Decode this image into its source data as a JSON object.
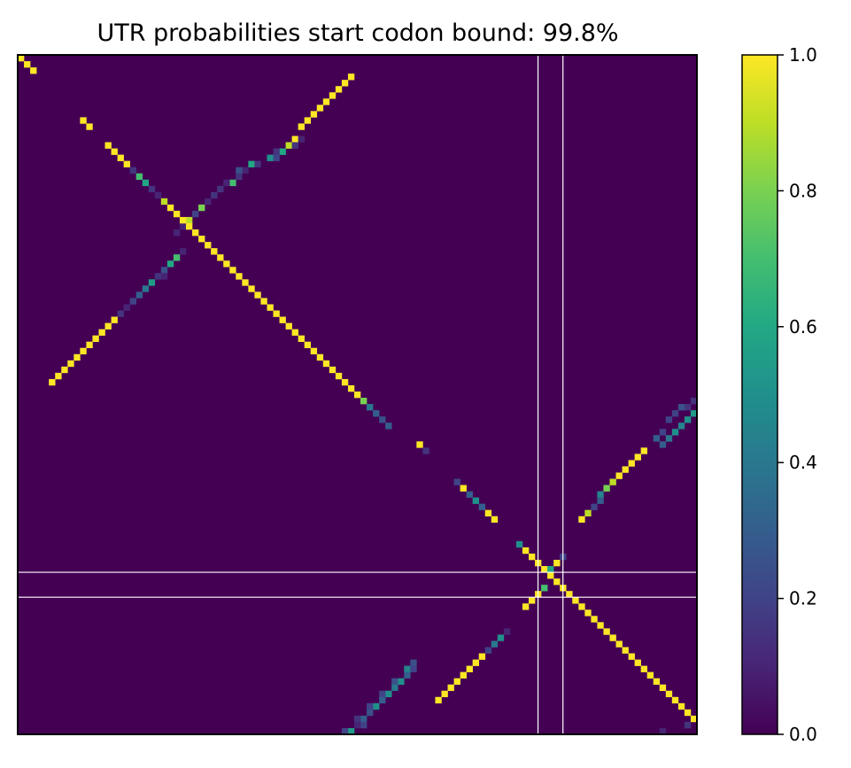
{
  "chart_data": {
    "type": "heatmap",
    "title": "UTR probabilities start codon bound: 99.8%",
    "colormap": "viridis",
    "matrix_size": 109,
    "clim": [
      0,
      1
    ],
    "colorbar": {
      "ticks": [
        0.0,
        0.2,
        0.4,
        0.6,
        0.8,
        1.0
      ],
      "tick_labels": [
        "0.0",
        "0.2",
        "0.4",
        "0.6",
        "0.8",
        "1.0"
      ]
    },
    "marker_lines": {
      "color": "#ffffff",
      "vertical_at": [
        83.5,
        87.5
      ],
      "horizontal_at": [
        83,
        87
      ]
    },
    "cells": [
      [
        0,
        0,
        1
      ],
      [
        1,
        1,
        1
      ],
      [
        2,
        2,
        1
      ],
      [
        3,
        53,
        1
      ],
      [
        4,
        52,
        1
      ],
      [
        5,
        51,
        1
      ],
      [
        6,
        50,
        1
      ],
      [
        7,
        49,
        1
      ],
      [
        8,
        48,
        1
      ],
      [
        9,
        47,
        1
      ],
      [
        10,
        46,
        1
      ],
      [
        11,
        45,
        1
      ],
      [
        13,
        44,
        1
      ],
      [
        13,
        45,
        0.1
      ],
      [
        14,
        43,
        0.9
      ],
      [
        14,
        44,
        0.15
      ],
      [
        15,
        42,
        0.6
      ],
      [
        15,
        41,
        0.15
      ],
      [
        16,
        40,
        0.5
      ],
      [
        16,
        41,
        0.2
      ],
      [
        17,
        37,
        0.6
      ],
      [
        17,
        38,
        0.15
      ],
      [
        18,
        36,
        0.1
      ],
      [
        18,
        35,
        0.25
      ],
      [
        19,
        35,
        0.15
      ],
      [
        20,
        34,
        0.7
      ],
      [
        20,
        33,
        0.1
      ],
      [
        21,
        32,
        0.15
      ],
      [
        22,
        31,
        0.15
      ],
      [
        23,
        30,
        0.1
      ],
      [
        24,
        29,
        0.8
      ],
      [
        25,
        28,
        0.2
      ],
      [
        26,
        27,
        0.9
      ],
      [
        27,
        26,
        0.1
      ],
      [
        28,
        25,
        0.1
      ],
      [
        31,
        26,
        0.1
      ],
      [
        32,
        25,
        0.7
      ],
      [
        33,
        24,
        0.6
      ],
      [
        34,
        23,
        0.25
      ],
      [
        35,
        22,
        0.15
      ],
      [
        35,
        23,
        0.1
      ],
      [
        36,
        21,
        0.55
      ],
      [
        37,
        20,
        0.4
      ],
      [
        38,
        19,
        0.3
      ],
      [
        39,
        18,
        0.2
      ],
      [
        40,
        17,
        0.1
      ],
      [
        41,
        16,
        0.15
      ],
      [
        42,
        15,
        1
      ],
      [
        43,
        14,
        1
      ],
      [
        44,
        13,
        1
      ],
      [
        45,
        12,
        1
      ],
      [
        46,
        11,
        1
      ],
      [
        47,
        10,
        1
      ],
      [
        48,
        9,
        1
      ],
      [
        49,
        8,
        1
      ],
      [
        50,
        7,
        1
      ],
      [
        51,
        6,
        1
      ],
      [
        52,
        5,
        1
      ],
      [
        10,
        10,
        1
      ],
      [
        11,
        11,
        1
      ],
      [
        14,
        14,
        1
      ],
      [
        15,
        15,
        1
      ],
      [
        16,
        16,
        1
      ],
      [
        17,
        17,
        1
      ],
      [
        18,
        18,
        0.15
      ],
      [
        19,
        19,
        0.7
      ],
      [
        20,
        20,
        0.6
      ],
      [
        21,
        21,
        0.15
      ],
      [
        22,
        22,
        0.1
      ],
      [
        23,
        23,
        0.9
      ],
      [
        24,
        24,
        1
      ],
      [
        25,
        25,
        1
      ],
      [
        26,
        26,
        1
      ],
      [
        27,
        27,
        1
      ],
      [
        28,
        28,
        1
      ],
      [
        29,
        29,
        1
      ],
      [
        30,
        30,
        1
      ],
      [
        31,
        31,
        1
      ],
      [
        32,
        32,
        1
      ],
      [
        33,
        33,
        1
      ],
      [
        34,
        34,
        1
      ],
      [
        35,
        35,
        1
      ],
      [
        36,
        36,
        1
      ],
      [
        37,
        37,
        1
      ],
      [
        38,
        38,
        1
      ],
      [
        39,
        39,
        1
      ],
      [
        40,
        40,
        1
      ],
      [
        41,
        41,
        1
      ],
      [
        42,
        42,
        1
      ],
      [
        43,
        43,
        1
      ],
      [
        44,
        44,
        1
      ],
      [
        45,
        45,
        1
      ],
      [
        46,
        46,
        1
      ],
      [
        47,
        47,
        1
      ],
      [
        48,
        48,
        1
      ],
      [
        49,
        49,
        1
      ],
      [
        50,
        50,
        1
      ],
      [
        51,
        51,
        1
      ],
      [
        52,
        52,
        1
      ],
      [
        53,
        53,
        1
      ],
      [
        54,
        54,
        1
      ],
      [
        55,
        55,
        0.8
      ],
      [
        56,
        56,
        0.4
      ],
      [
        57,
        57,
        0.3
      ],
      [
        58,
        58,
        0.25
      ],
      [
        59,
        59,
        0.3
      ],
      [
        62,
        64,
        1
      ],
      [
        63,
        65,
        0.15
      ],
      [
        68,
        70,
        0.2
      ],
      [
        69,
        71,
        1
      ],
      [
        70,
        72,
        0.3
      ],
      [
        71,
        73,
        0.5
      ],
      [
        72,
        74,
        0.3
      ],
      [
        73,
        75,
        1
      ],
      [
        74,
        76,
        1
      ],
      [
        78,
        80,
        0.5
      ],
      [
        79,
        81,
        1
      ],
      [
        80,
        82,
        1
      ],
      [
        81,
        83,
        1
      ],
      [
        82,
        84,
        1
      ],
      [
        83,
        85,
        1
      ],
      [
        84,
        86,
        1
      ],
      [
        85,
        87,
        1
      ],
      [
        86,
        88,
        1
      ],
      [
        87,
        89,
        1
      ],
      [
        88,
        90,
        1
      ],
      [
        89,
        91,
        1
      ],
      [
        90,
        92,
        1
      ],
      [
        91,
        93,
        1
      ],
      [
        92,
        94,
        1
      ],
      [
        93,
        95,
        1
      ],
      [
        94,
        96,
        1
      ],
      [
        95,
        97,
        1
      ],
      [
        96,
        98,
        1
      ],
      [
        97,
        99,
        1
      ],
      [
        98,
        100,
        1
      ],
      [
        99,
        101,
        1
      ],
      [
        100,
        102,
        1
      ],
      [
        101,
        103,
        1
      ],
      [
        102,
        104,
        1
      ],
      [
        103,
        105,
        1
      ],
      [
        104,
        106,
        1
      ],
      [
        105,
        107,
        1
      ],
      [
        106,
        108,
        1
      ],
      [
        55,
        108,
        0.15
      ],
      [
        56,
        107,
        0.15
      ],
      [
        56,
        106,
        0.25
      ],
      [
        57,
        108,
        0.55
      ],
      [
        57,
        105,
        0.2
      ],
      [
        58,
        104,
        0.2
      ],
      [
        58,
        107,
        0.5
      ],
      [
        59,
        106,
        0.45
      ],
      [
        60,
        105,
        0.5
      ],
      [
        60,
        103,
        0.2
      ],
      [
        61,
        104,
        0.4
      ],
      [
        61,
        102,
        0.3
      ],
      [
        62,
        103,
        0.3
      ],
      [
        63,
        100,
        1
      ],
      [
        64,
        99,
        1
      ],
      [
        65,
        98,
        1
      ],
      [
        66,
        97,
        1
      ],
      [
        67,
        96,
        1
      ],
      [
        68,
        95,
        0.9
      ],
      [
        69,
        94,
        0.8
      ],
      [
        70,
        93,
        0.45
      ],
      [
        71,
        93,
        0.3
      ],
      [
        72,
        92,
        0.2
      ],
      [
        73,
        91,
        0.9
      ],
      [
        74,
        90,
        1
      ],
      [
        80,
        87,
        0.2
      ],
      [
        81,
        86,
        1
      ],
      [
        82,
        85,
        0.6
      ],
      [
        85,
        84,
        0.7
      ],
      [
        86,
        83,
        1
      ],
      [
        87,
        82,
        1
      ],
      [
        88,
        81,
        1
      ],
      [
        92,
        78,
        0.1
      ],
      [
        93,
        77,
        0.5
      ],
      [
        94,
        76,
        0.4
      ],
      [
        95,
        75,
        0.2
      ],
      [
        96,
        74,
        1
      ],
      [
        97,
        73,
        1
      ],
      [
        98,
        72,
        1
      ],
      [
        99,
        71,
        1
      ],
      [
        100,
        70,
        1
      ],
      [
        101,
        69,
        1
      ],
      [
        102,
        68,
        1
      ],
      [
        103,
        67,
        1
      ],
      [
        97,
        63,
        0.25
      ],
      [
        98,
        62,
        0.45
      ],
      [
        98,
        63,
        0.2
      ],
      [
        99,
        62,
        0.3
      ],
      [
        100,
        61,
        0.5
      ],
      [
        100,
        60,
        0.25
      ],
      [
        101,
        60,
        0.4
      ],
      [
        102,
        59,
        0.5
      ],
      [
        102,
        58,
        0.2
      ],
      [
        103,
        58,
        0.3
      ],
      [
        104,
        57,
        0.5
      ],
      [
        104,
        56,
        0.2
      ],
      [
        105,
        56,
        0.25
      ],
      [
        106,
        55,
        0.3
      ],
      [
        106,
        54,
        0.15
      ],
      [
        107,
        55,
        0.2
      ],
      [
        107,
        54,
        0.1
      ],
      [
        108,
        53,
        0.55
      ],
      [
        108,
        52,
        0.2
      ],
      [
        108,
        103,
        0.1
      ],
      [
        107,
        107,
        0.15
      ]
    ]
  }
}
